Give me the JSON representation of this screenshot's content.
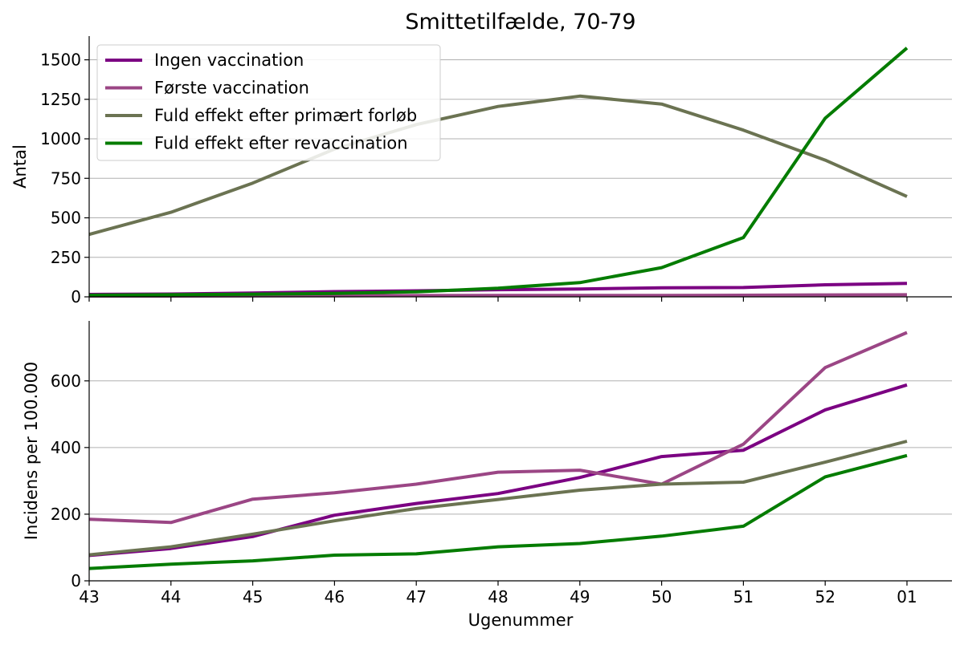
{
  "title": "Smittetilfælde, 70-79",
  "xlabel": "Ugenummer",
  "colors": {
    "ingen": "#7b0082",
    "forste": "#9b4685",
    "fuld": "#6b7352",
    "revacc": "#047c00",
    "grid": "#b0b0b0",
    "axis": "#000000"
  },
  "chart_data": [
    {
      "type": "line",
      "ylabel": "Antal",
      "categories": [
        "43",
        "44",
        "45",
        "46",
        "47",
        "48",
        "49",
        "50",
        "51",
        "52",
        "01"
      ],
      "ylim": [
        0,
        1650
      ],
      "yticks": [
        0,
        250,
        500,
        750,
        1000,
        1250,
        1500
      ],
      "grid": "y",
      "legend_position": "top-left",
      "series": [
        {
          "name": "Ingen vaccination",
          "color": "#7b0082",
          "values": [
            15,
            18,
            24,
            33,
            38,
            45,
            50,
            57,
            59,
            76,
            85
          ]
        },
        {
          "name": "Første vaccination",
          "color": "#9b4685",
          "values": [
            5,
            5,
            6,
            7,
            8,
            9,
            9,
            9,
            10,
            12,
            13
          ]
        },
        {
          "name": "Fuld effekt efter primært forløb",
          "color": "#6b7352",
          "values": [
            395,
            535,
            720,
            935,
            1090,
            1205,
            1270,
            1220,
            1055,
            865,
            635
          ]
        },
        {
          "name": "Fuld effekt efter revaccination",
          "color": "#047c00",
          "values": [
            10,
            13,
            16,
            22,
            32,
            55,
            90,
            185,
            375,
            1130,
            1575
          ]
        }
      ]
    },
    {
      "type": "line",
      "ylabel": "Incidens per 100.000",
      "categories": [
        "43",
        "44",
        "45",
        "46",
        "47",
        "48",
        "49",
        "50",
        "51",
        "52",
        "01"
      ],
      "ylim": [
        0,
        780
      ],
      "yticks": [
        0,
        200,
        400,
        600
      ],
      "grid": "y",
      "series": [
        {
          "name": "Ingen vaccination",
          "color": "#7b0082",
          "values": [
            76,
            97,
            133,
            197,
            232,
            262,
            310,
            373,
            392,
            513,
            588
          ]
        },
        {
          "name": "Første vaccination",
          "color": "#9b4685",
          "values": [
            185,
            175,
            245,
            264,
            290,
            326,
            332,
            290,
            410,
            640,
            745
          ]
        },
        {
          "name": "Fuld effekt efter primært forløb",
          "color": "#6b7352",
          "values": [
            78,
            102,
            140,
            180,
            217,
            244,
            272,
            290,
            296,
            356,
            419
          ]
        },
        {
          "name": "Fuld effekt efter revaccination",
          "color": "#047c00",
          "values": [
            37,
            50,
            60,
            77,
            81,
            102,
            112,
            134,
            164,
            312,
            376
          ]
        }
      ]
    }
  ]
}
